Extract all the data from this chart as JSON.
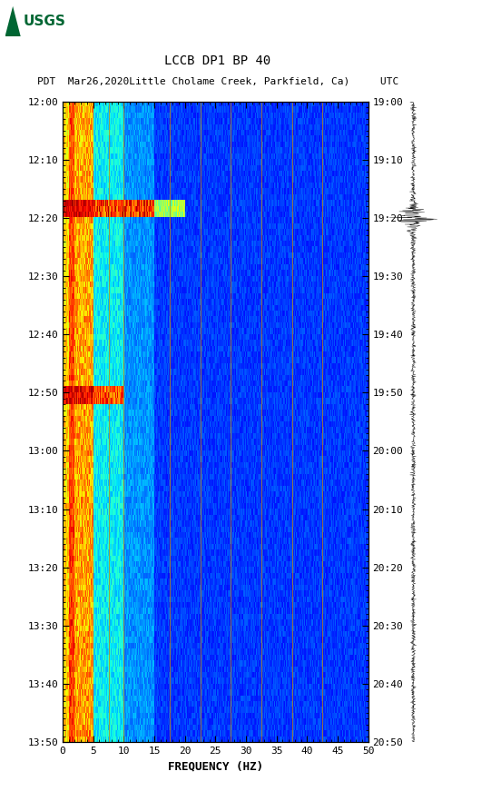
{
  "title_line1": "LCCB DP1 BP 40",
  "title_line2": "PDT  Mar26,2020Little Cholame Creek, Parkfield, Ca)     UTC",
  "xlabel": "FREQUENCY (HZ)",
  "freq_min": 0,
  "freq_max": 50,
  "time_ticks_pdt": [
    "12:00",
    "12:10",
    "12:20",
    "12:30",
    "12:40",
    "12:50",
    "13:00",
    "13:10",
    "13:20",
    "13:30",
    "13:40",
    "13:50"
  ],
  "time_ticks_utc": [
    "19:00",
    "19:10",
    "19:20",
    "19:30",
    "19:40",
    "19:50",
    "20:00",
    "20:10",
    "20:20",
    "20:30",
    "20:40",
    "20:50"
  ],
  "freq_ticks": [
    0,
    5,
    10,
    15,
    20,
    25,
    30,
    35,
    40,
    45,
    50
  ],
  "vertical_lines_freq": [
    7.5,
    10.0,
    17.5,
    22.5,
    27.5,
    32.5,
    37.5,
    42.5
  ],
  "n_time": 110,
  "n_freq": 500,
  "background_color": "#ffffff",
  "colormap": "jet",
  "figsize": [
    5.52,
    8.93
  ],
  "dpi": 100,
  "logo_color": "#006633",
  "title_fontsize": 10,
  "tick_fontsize": 8,
  "axis_label_fontsize": 9
}
